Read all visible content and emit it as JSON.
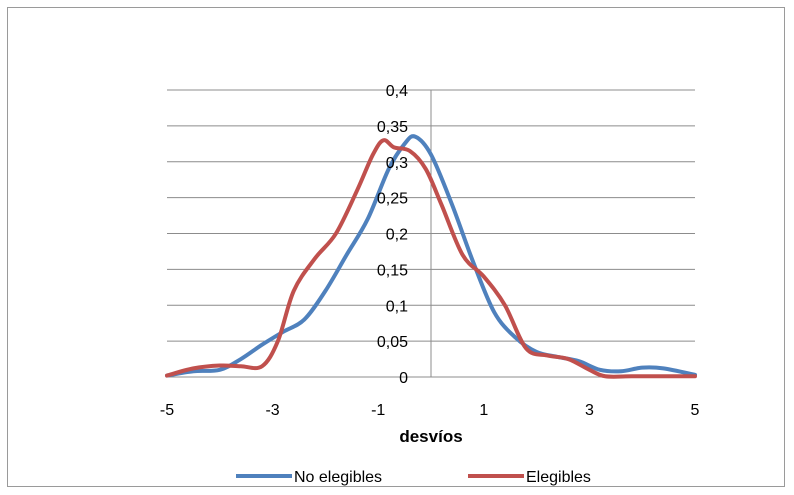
{
  "chart_data": {
    "type": "line",
    "title": "",
    "xlabel": "desvíos",
    "ylabel": "",
    "xlim": [
      -5,
      5
    ],
    "ylim": [
      0,
      0.4
    ],
    "x_tick_labels": [
      "-5",
      "-3",
      "-1",
      "1",
      "3",
      "5"
    ],
    "y_tick_labels": [
      "0",
      "0,05",
      "0,1",
      "0,15",
      "0,2",
      "0,25",
      "0,3",
      "0,35",
      "0,4"
    ],
    "grid": "horizontal",
    "legend_position": "bottom",
    "series": [
      {
        "name": "No elegibles",
        "color": "#4f81bd",
        "x": [
          -5,
          -4.5,
          -4,
          -3.6,
          -3.2,
          -2.8,
          -2.4,
          -2,
          -1.6,
          -1.2,
          -0.8,
          -0.5,
          -0.3,
          0,
          0.4,
          0.8,
          1.2,
          1.6,
          2,
          2.4,
          2.8,
          3.2,
          3.6,
          4,
          4.4,
          5
        ],
        "y": [
          0.002,
          0.008,
          0.01,
          0.025,
          0.045,
          0.063,
          0.08,
          0.12,
          0.17,
          0.22,
          0.29,
          0.325,
          0.335,
          0.31,
          0.24,
          0.16,
          0.09,
          0.055,
          0.035,
          0.028,
          0.022,
          0.01,
          0.008,
          0.013,
          0.012,
          0.003
        ]
      },
      {
        "name": "Elegibles",
        "color": "#c0504d",
        "x": [
          -5,
          -4.5,
          -4,
          -3.6,
          -3.2,
          -2.9,
          -2.6,
          -2.2,
          -1.8,
          -1.4,
          -1.1,
          -0.9,
          -0.7,
          -0.4,
          -0.1,
          0.2,
          0.6,
          1,
          1.4,
          1.8,
          2.2,
          2.6,
          3,
          3.3,
          3.8,
          4.3,
          5
        ],
        "y": [
          0.002,
          0.012,
          0.016,
          0.015,
          0.015,
          0.05,
          0.12,
          0.165,
          0.2,
          0.26,
          0.31,
          0.33,
          0.32,
          0.315,
          0.29,
          0.24,
          0.17,
          0.14,
          0.1,
          0.04,
          0.03,
          0.025,
          0.01,
          0.001,
          0.001,
          0.001,
          0.001
        ]
      }
    ]
  }
}
